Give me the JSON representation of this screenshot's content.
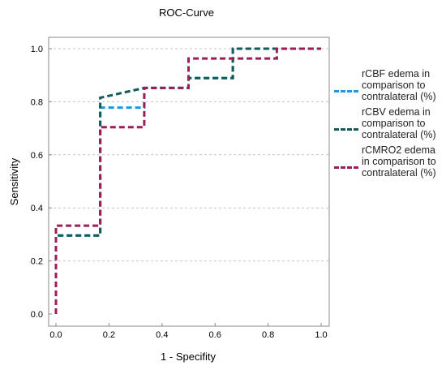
{
  "chart_data": {
    "type": "line",
    "title": "ROC-Curve",
    "xlabel": "1 - Specifity",
    "ylabel": "Sensitivity",
    "xlim": [
      0,
      1
    ],
    "ylim": [
      0,
      1
    ],
    "xticks": [
      "0.0",
      "0.2",
      "0.4",
      "0.6",
      "0.8",
      "1.0"
    ],
    "yticks": [
      "0.0",
      "0.2",
      "0.4",
      "0.6",
      "0.8",
      "1.0"
    ],
    "grid": "horizontal dashed",
    "legend_position": "right",
    "series": [
      {
        "name": "rCBF edema in comparison to contralateral (%)",
        "color": "#2196e0",
        "x": [
          0.0,
          0.0,
          0.167,
          0.167,
          0.167,
          0.333,
          0.333,
          0.5,
          0.5,
          0.667,
          0.667,
          1.0
        ],
        "y": [
          0.0,
          0.296,
          0.296,
          0.778,
          0.778,
          0.778,
          0.852,
          0.852,
          0.889,
          0.889,
          1.0,
          1.0
        ]
      },
      {
        "name": "rCBV edema in comparison to contralateral (%)",
        "color": "#0f5c5a",
        "x": [
          0.0,
          0.0,
          0.167,
          0.167,
          0.333,
          0.5,
          0.5,
          0.667,
          0.667,
          1.0
        ],
        "y": [
          0.0,
          0.296,
          0.296,
          0.815,
          0.852,
          0.852,
          0.889,
          0.889,
          1.0,
          1.0
        ]
      },
      {
        "name": "rCMRO2 edema  in comparison to contralateral (%)",
        "color": "#9b1f55",
        "x": [
          0.0,
          0.0,
          0.167,
          0.167,
          0.333,
          0.333,
          0.5,
          0.5,
          0.833,
          0.833,
          1.0
        ],
        "y": [
          0.0,
          0.333,
          0.333,
          0.704,
          0.704,
          0.852,
          0.852,
          0.963,
          0.963,
          1.0,
          1.0
        ]
      }
    ]
  }
}
